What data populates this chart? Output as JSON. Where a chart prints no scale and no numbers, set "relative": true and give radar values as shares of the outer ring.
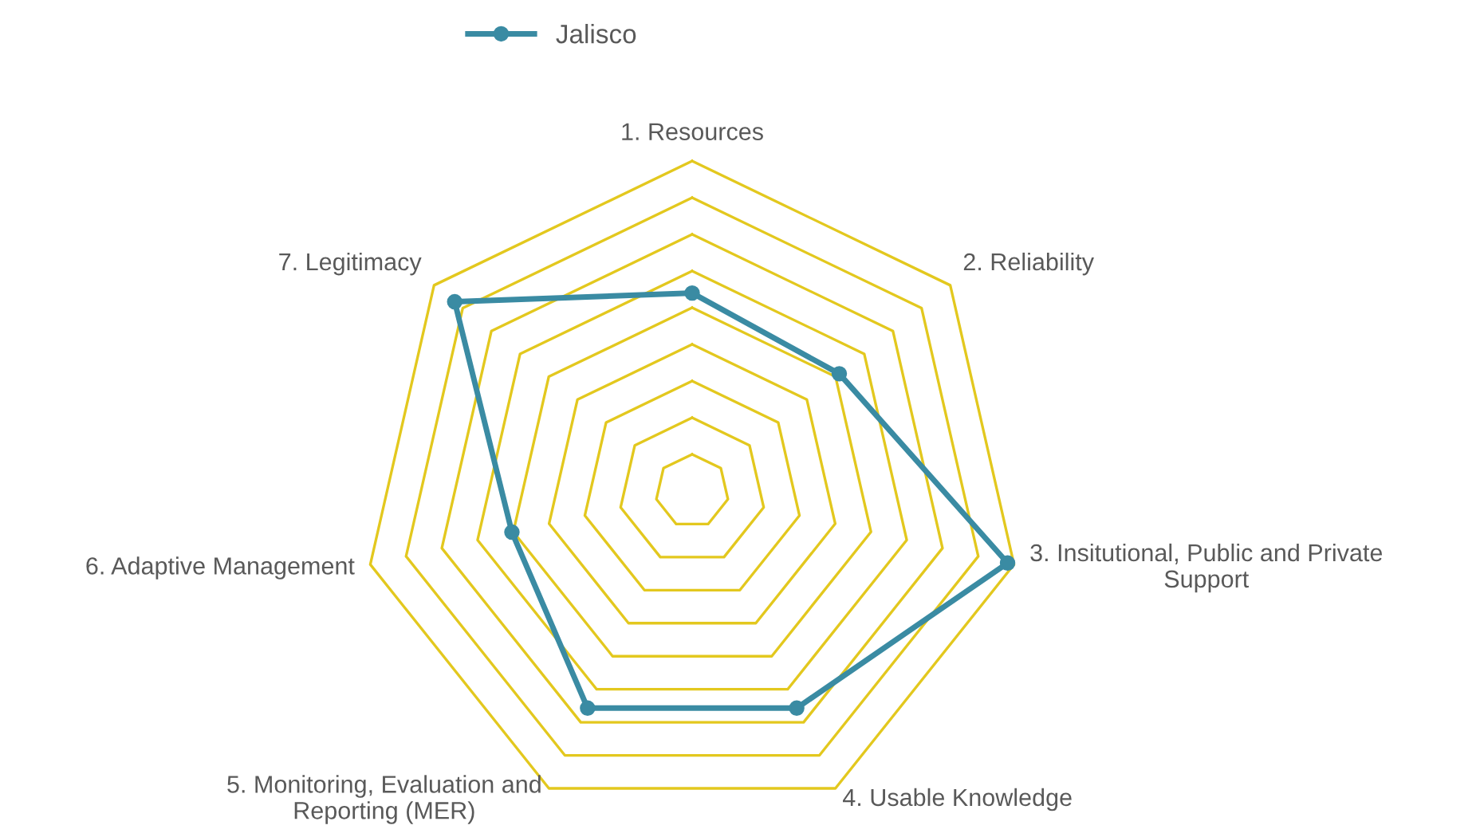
{
  "chart_data": {
    "type": "radar",
    "relative": true,
    "grid": true,
    "legend": "top",
    "marker": "circle",
    "line_style": "solid",
    "categories": [
      "1. Resources",
      "2. Reliability",
      "3. Insitutional, Public and Private\nSupport",
      "4. Usable Knowledge",
      "5. Monitoring, Evaluation and\nReporting (MER)",
      "6. Adaptive Management",
      "7. Legitimacy"
    ],
    "series": [
      {
        "name": "Jalisco",
        "color": "#3a8ba3",
        "values": [
          0.6,
          0.57,
          0.98,
          0.73,
          0.73,
          0.56,
          0.92
        ]
      }
    ]
  }
}
